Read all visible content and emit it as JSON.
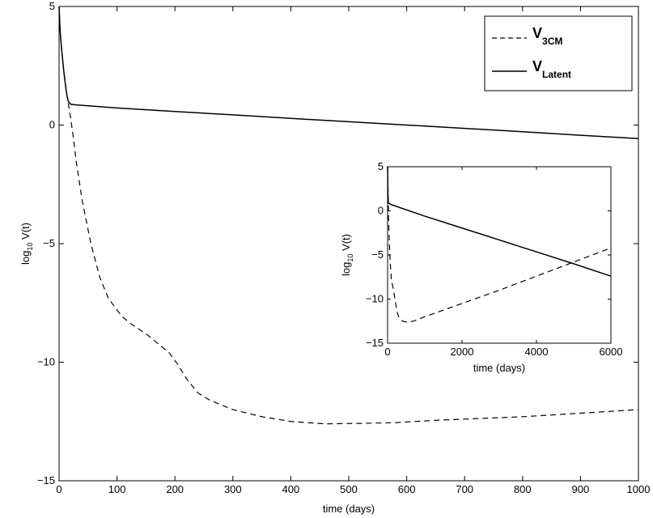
{
  "chart_data": [
    {
      "type": "line",
      "title": "",
      "xlabel": "time (days)",
      "ylabel_base": "log",
      "ylabel_sub": "10",
      "ylabel_rest": " V(t)",
      "xlim": [
        0,
        1000
      ],
      "ylim": [
        -15,
        5
      ],
      "xticks": [
        0,
        100,
        200,
        300,
        400,
        500,
        600,
        700,
        800,
        900,
        1000
      ],
      "yticks": [
        -15,
        -10,
        -5,
        0,
        5
      ],
      "grid": false,
      "legend": {
        "placement": "top-right",
        "entries": [
          {
            "base": "V",
            "sub": "3CM",
            "style": "dashed"
          },
          {
            "base": "V",
            "sub": "Latent",
            "style": "solid"
          }
        ]
      },
      "series": [
        {
          "name": "V3CM",
          "style": "dashed",
          "points": [
            [
              0,
              5.0
            ],
            [
              1,
              4.4
            ],
            [
              2,
              3.9
            ],
            [
              4,
              3.3
            ],
            [
              6,
              2.8
            ],
            [
              8,
              2.3
            ],
            [
              10,
              1.9
            ],
            [
              12,
              1.5
            ],
            [
              14,
              1.2
            ],
            [
              16,
              0.9
            ],
            [
              20,
              0.3
            ],
            [
              25,
              -0.6
            ],
            [
              30,
              -1.6
            ],
            [
              40,
              -3.2
            ],
            [
              55,
              -5.0
            ],
            [
              70,
              -6.4
            ],
            [
              85,
              -7.3
            ],
            [
              100,
              -7.8
            ],
            [
              110,
              -8.1
            ],
            [
              125,
              -8.4
            ],
            [
              150,
              -8.8
            ],
            [
              170,
              -9.2
            ],
            [
              190,
              -9.6
            ],
            [
              205,
              -10.1
            ],
            [
              220,
              -10.7
            ],
            [
              240,
              -11.3
            ],
            [
              260,
              -11.6
            ],
            [
              300,
              -12.0
            ],
            [
              350,
              -12.3
            ],
            [
              400,
              -12.5
            ],
            [
              460,
              -12.6
            ],
            [
              520,
              -12.58
            ],
            [
              580,
              -12.55
            ],
            [
              650,
              -12.45
            ],
            [
              700,
              -12.4
            ],
            [
              800,
              -12.3
            ],
            [
              900,
              -12.15
            ],
            [
              1000,
              -12.0
            ]
          ]
        },
        {
          "name": "VLatent",
          "style": "solid",
          "points": [
            [
              0,
              5.0
            ],
            [
              1,
              4.4
            ],
            [
              2,
              3.9
            ],
            [
              4,
              3.3
            ],
            [
              6,
              2.8
            ],
            [
              8,
              2.3
            ],
            [
              10,
              1.9
            ],
            [
              12,
              1.5
            ],
            [
              14,
              1.2
            ],
            [
              16,
              1.0
            ],
            [
              20,
              0.88
            ],
            [
              30,
              0.85
            ],
            [
              100,
              0.72
            ],
            [
              200,
              0.57
            ],
            [
              300,
              0.43
            ],
            [
              400,
              0.28
            ],
            [
              500,
              0.14
            ],
            [
              600,
              0.0
            ],
            [
              700,
              -0.14
            ],
            [
              800,
              -0.28
            ],
            [
              900,
              -0.43
            ],
            [
              1000,
              -0.57
            ]
          ]
        }
      ]
    },
    {
      "type": "line",
      "title": "",
      "xlabel": "time (days)",
      "ylabel_base": "log",
      "ylabel_sub": "10",
      "ylabel_rest": " V(t)",
      "xlim": [
        0,
        6000
      ],
      "ylim": [
        -15,
        5
      ],
      "xticks": [
        0,
        2000,
        4000,
        6000
      ],
      "yticks": [
        -15,
        -10,
        -5,
        0,
        5
      ],
      "grid": false,
      "series": [
        {
          "name": "V3CM",
          "style": "dashed",
          "points": [
            [
              0,
              5.0
            ],
            [
              15,
              1.5
            ],
            [
              30,
              -1.6
            ],
            [
              60,
              -5.0
            ],
            [
              100,
              -7.8
            ],
            [
              150,
              -8.8
            ],
            [
              200,
              -10.0
            ],
            [
              250,
              -11.4
            ],
            [
              300,
              -12.0
            ],
            [
              400,
              -12.5
            ],
            [
              500,
              -12.6
            ],
            [
              700,
              -12.5
            ],
            [
              1000,
              -12.0
            ],
            [
              2000,
              -10.5
            ],
            [
              3000,
              -9.0
            ],
            [
              4000,
              -7.4
            ],
            [
              5000,
              -5.8
            ],
            [
              6000,
              -4.2
            ]
          ]
        },
        {
          "name": "VLatent",
          "style": "solid",
          "points": [
            [
              0,
              5.0
            ],
            [
              10,
              1.8
            ],
            [
              20,
              0.9
            ],
            [
              100,
              0.7
            ],
            [
              1000,
              -0.6
            ],
            [
              2000,
              -1.95
            ],
            [
              3000,
              -3.3
            ],
            [
              4000,
              -4.65
            ],
            [
              5000,
              -6.0
            ],
            [
              6000,
              -7.4
            ]
          ]
        }
      ]
    }
  ]
}
